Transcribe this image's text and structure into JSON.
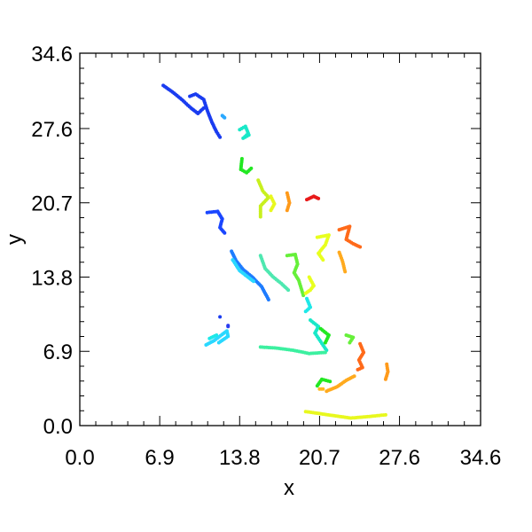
{
  "chart_data": {
    "type": "scatter",
    "xlabel": "x",
    "ylabel": "y",
    "xlim": [
      0.0,
      34.6
    ],
    "ylim": [
      0.0,
      34.6
    ],
    "x_ticks": [
      "0.0",
      "6.9",
      "13.8",
      "20.7",
      "27.6",
      "34.6"
    ],
    "y_ticks": [
      "0.0",
      "6.9",
      "13.8",
      "20.7",
      "27.6",
      "34.6"
    ],
    "x_tick_values": [
      0.0,
      6.9,
      13.8,
      20.7,
      27.6,
      34.6
    ],
    "y_tick_values": [
      0.0,
      6.9,
      13.8,
      20.7,
      27.6,
      34.6
    ],
    "grid": false,
    "colormap": "rainbow (blue to red)",
    "tracks": [
      {
        "color": "#1a3cf0",
        "points": [
          [
            7.2,
            31.6
          ],
          [
            8.0,
            31.0
          ],
          [
            8.8,
            30.3
          ],
          [
            9.6,
            29.5
          ],
          [
            10.2,
            29.0
          ],
          [
            10.7,
            29.5
          ]
        ]
      },
      {
        "color": "#1a3cf0",
        "points": [
          [
            9.5,
            30.6
          ],
          [
            10.0,
            30.8
          ],
          [
            10.7,
            30.3
          ],
          [
            11.0,
            29.3
          ],
          [
            11.4,
            28.2
          ],
          [
            11.8,
            27.3
          ],
          [
            12.1,
            26.8
          ]
        ]
      },
      {
        "color": "#2aa8ff",
        "points": [
          [
            12.3,
            28.8
          ],
          [
            12.5,
            28.6
          ]
        ]
      },
      {
        "color": "#19e8c8",
        "points": [
          [
            13.8,
            27.5
          ],
          [
            14.3,
            27.8
          ],
          [
            14.6,
            27.0
          ],
          [
            14.1,
            26.7
          ],
          [
            14.4,
            27.0
          ]
        ]
      },
      {
        "color": "#22e822",
        "points": [
          [
            14.0,
            24.8
          ],
          [
            13.9,
            23.8
          ],
          [
            14.4,
            23.5
          ],
          [
            14.8,
            23.9
          ]
        ]
      },
      {
        "color": "#c8f01e",
        "points": [
          [
            15.4,
            22.8
          ],
          [
            15.8,
            21.8
          ],
          [
            16.3,
            21.2
          ],
          [
            15.6,
            20.4
          ],
          [
            15.6,
            19.4
          ]
        ]
      },
      {
        "color": "#e8f81e",
        "points": [
          [
            16.5,
            21.3
          ],
          [
            16.8,
            20.6
          ],
          [
            16.5,
            20.0
          ]
        ]
      },
      {
        "color": "#ff9a1a",
        "points": [
          [
            17.9,
            21.6
          ],
          [
            18.1,
            20.7
          ],
          [
            17.9,
            20.0
          ]
        ]
      },
      {
        "color": "#e81a1a",
        "points": [
          [
            19.6,
            21.0
          ],
          [
            20.2,
            21.3
          ],
          [
            20.6,
            21.1
          ]
        ]
      },
      {
        "color": "#1a46ff",
        "points": [
          [
            11.0,
            19.8
          ],
          [
            11.9,
            19.9
          ],
          [
            12.3,
            19.2
          ],
          [
            12.1,
            18.4
          ],
          [
            12.5,
            17.9
          ]
        ]
      },
      {
        "color": "#e8ff1e",
        "points": [
          [
            20.5,
            17.5
          ],
          [
            21.5,
            17.7
          ],
          [
            21.2,
            16.8
          ],
          [
            20.6,
            16.0
          ],
          [
            21.0,
            15.4
          ]
        ]
      },
      {
        "color": "#ff6a1a",
        "points": [
          [
            22.4,
            18.2
          ],
          [
            23.3,
            18.5
          ],
          [
            23.0,
            17.3
          ],
          [
            23.6,
            16.9
          ],
          [
            24.2,
            16.6
          ]
        ]
      },
      {
        "color": "#ffaa1e",
        "points": [
          [
            22.4,
            16.1
          ],
          [
            22.7,
            15.2
          ],
          [
            22.9,
            14.3
          ]
        ]
      },
      {
        "color": "#1e7cff",
        "points": [
          [
            13.1,
            16.2
          ],
          [
            13.5,
            15.3
          ],
          [
            14.1,
            14.5
          ],
          [
            14.9,
            13.8
          ],
          [
            15.7,
            12.9
          ],
          [
            16.3,
            11.7
          ]
        ]
      },
      {
        "color": "#2ad8ff",
        "points": [
          [
            13.2,
            15.4
          ],
          [
            13.8,
            14.4
          ],
          [
            14.4,
            13.9
          ],
          [
            15.0,
            13.4
          ]
        ]
      },
      {
        "color": "#4ee8b0",
        "points": [
          [
            15.6,
            15.8
          ],
          [
            16.0,
            14.6
          ],
          [
            16.7,
            13.8
          ],
          [
            17.4,
            13.2
          ],
          [
            18.0,
            12.6
          ]
        ]
      },
      {
        "color": "#66f03a",
        "points": [
          [
            17.9,
            15.8
          ],
          [
            18.6,
            15.9
          ],
          [
            18.8,
            15.0
          ],
          [
            18.5,
            14.2
          ],
          [
            18.9,
            13.5
          ],
          [
            19.3,
            12.1
          ]
        ]
      },
      {
        "color": "#e8ff1e",
        "points": [
          [
            19.8,
            13.8
          ],
          [
            20.2,
            13.0
          ],
          [
            19.9,
            12.6
          ],
          [
            19.5,
            12.3
          ]
        ]
      },
      {
        "color": "#1ee8e8",
        "points": [
          [
            19.6,
            11.8
          ],
          [
            19.9,
            11.0
          ],
          [
            19.5,
            10.6
          ]
        ]
      },
      {
        "color": "#1a3cf0",
        "points": [
          [
            12.1,
            10.1
          ]
        ]
      },
      {
        "color": "#2a3cf0",
        "points": [
          [
            12.8,
            9.3
          ],
          [
            12.8,
            9.2
          ]
        ]
      },
      {
        "color": "#2ad8ff",
        "points": [
          [
            10.9,
            7.5
          ],
          [
            11.6,
            7.9
          ],
          [
            12.7,
            8.8
          ],
          [
            12.8,
            8.3
          ],
          [
            12.0,
            7.7
          ]
        ]
      },
      {
        "color": "#1ee8e8",
        "points": [
          [
            11.2,
            8.1
          ],
          [
            11.8,
            8.4
          ]
        ]
      },
      {
        "color": "#19e8c8",
        "points": [
          [
            19.9,
            9.8
          ],
          [
            20.6,
            9.2
          ],
          [
            20.3,
            8.6
          ],
          [
            20.8,
            7.8
          ],
          [
            21.3,
            7.0
          ]
        ]
      },
      {
        "color": "#3cf0a0",
        "points": [
          [
            15.6,
            7.3
          ],
          [
            17.0,
            7.2
          ],
          [
            18.4,
            7.0
          ],
          [
            19.8,
            6.7
          ],
          [
            21.2,
            6.8
          ]
        ]
      },
      {
        "color": "#22e822",
        "points": [
          [
            20.8,
            9.0
          ],
          [
            21.5,
            8.4
          ],
          [
            21.2,
            7.7
          ]
        ]
      },
      {
        "color": "#66f03a",
        "points": [
          [
            23.0,
            8.4
          ],
          [
            23.6,
            8.2
          ],
          [
            23.3,
            7.7
          ]
        ]
      },
      {
        "color": "#ff6a1a",
        "points": [
          [
            24.2,
            7.6
          ],
          [
            24.5,
            6.8
          ],
          [
            24.1,
            6.1
          ],
          [
            24.4,
            5.4
          ],
          [
            24.0,
            5.2
          ]
        ]
      },
      {
        "color": "#ff9a1a",
        "points": [
          [
            26.5,
            5.7
          ],
          [
            26.6,
            5.0
          ],
          [
            26.4,
            4.3
          ]
        ]
      },
      {
        "color": "#ffaa1e",
        "points": [
          [
            21.3,
            3.2
          ],
          [
            22.2,
            3.6
          ],
          [
            23.0,
            4.2
          ],
          [
            23.7,
            4.6
          ]
        ]
      },
      {
        "color": "#22e822",
        "points": [
          [
            20.5,
            3.7
          ],
          [
            20.9,
            4.3
          ],
          [
            21.6,
            4.1
          ]
        ]
      },
      {
        "color": "#ffb81e",
        "points": [
          [
            20.7,
            3.4
          ],
          [
            21.0,
            3.4
          ]
        ]
      },
      {
        "color": "#e8f81e",
        "points": [
          [
            19.5,
            1.3
          ],
          [
            20.8,
            1.1
          ],
          [
            22.1,
            0.9
          ],
          [
            23.4,
            0.7
          ],
          [
            24.5,
            0.8
          ],
          [
            25.5,
            0.9
          ],
          [
            26.4,
            1.0
          ]
        ]
      }
    ]
  }
}
